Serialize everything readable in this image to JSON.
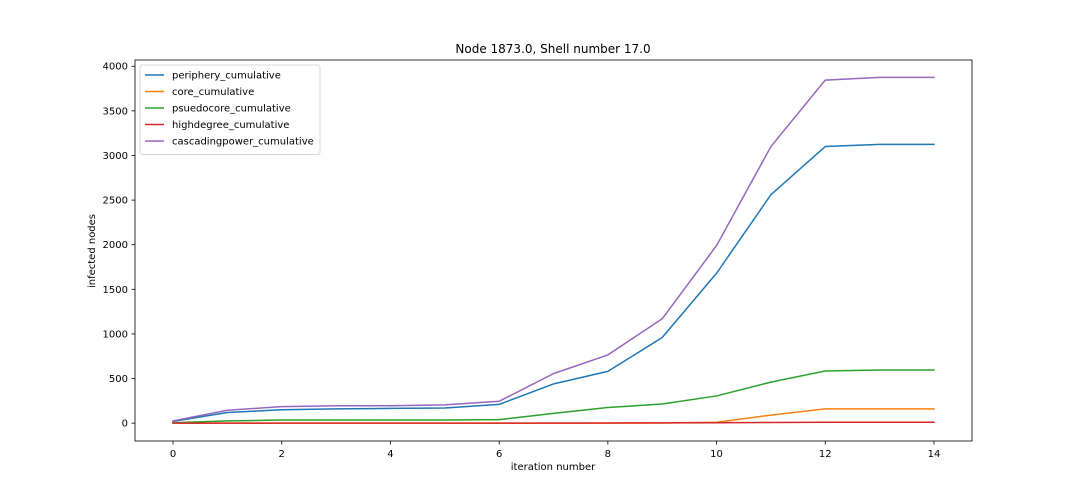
{
  "chart_data": {
    "type": "line",
    "title": "Node 1873.0, Shell number 17.0",
    "xlabel": "iteration number",
    "ylabel": "infected nodes",
    "xlim": [
      -0.7,
      14.7
    ],
    "ylim": [
      -200,
      4070
    ],
    "xticks": [
      0,
      2,
      4,
      6,
      8,
      10,
      12,
      14
    ],
    "yticks": [
      0,
      500,
      1000,
      1500,
      2000,
      2500,
      3000,
      3500,
      4000
    ],
    "grid": false,
    "legend_position": "upper-left",
    "x": [
      0,
      1,
      2,
      3,
      4,
      5,
      6,
      7,
      8,
      9,
      10,
      11,
      12,
      13,
      14
    ],
    "series": [
      {
        "name": "periphery_cumulative",
        "color": "#1f77b4",
        "values": [
          20,
          120,
          150,
          160,
          165,
          170,
          210,
          440,
          580,
          960,
          1680,
          2560,
          3100,
          3125,
          3125
        ]
      },
      {
        "name": "core_cumulative",
        "color": "#ff7f0e",
        "values": [
          0,
          0,
          0,
          0,
          0,
          0,
          0,
          0,
          0,
          2,
          10,
          90,
          160,
          160,
          160
        ]
      },
      {
        "name": "psuedocore_cumulative",
        "color": "#2ca02c",
        "values": [
          5,
          25,
          35,
          35,
          35,
          35,
          40,
          110,
          175,
          215,
          305,
          460,
          585,
          595,
          595
        ]
      },
      {
        "name": "highdegree_cumulative",
        "color": "#d62728",
        "values": [
          0,
          0,
          0,
          0,
          0,
          0,
          0,
          0,
          2,
          3,
          5,
          8,
          10,
          10,
          10
        ]
      },
      {
        "name": "cascadingpower_cumulative",
        "color": "#9467bd",
        "values": [
          25,
          145,
          185,
          195,
          195,
          205,
          245,
          555,
          765,
          1170,
          1990,
          3100,
          3845,
          3875,
          3875
        ]
      }
    ]
  }
}
